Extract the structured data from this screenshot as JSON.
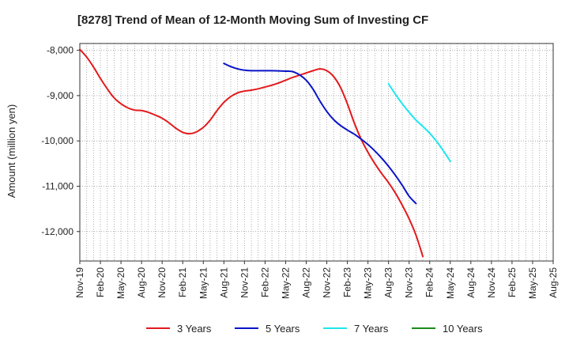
{
  "chart_data": {
    "type": "line",
    "title": "[8278]  Trend of Mean of 12-Month Moving Sum of Investing CF",
    "xlabel": "",
    "ylabel": "Amount (million yen)",
    "ylim": [
      -12650,
      -7850
    ],
    "yticks": [
      -8000,
      -9000,
      -10000,
      -11000,
      -12000
    ],
    "ytick_labels": [
      "-8,000",
      "-9,000",
      "-10,000",
      "-11,000",
      "-12,000"
    ],
    "x_categories": [
      "Nov-19",
      "Dec-19",
      "Jan-20",
      "Feb-20",
      "Mar-20",
      "Apr-20",
      "May-20",
      "Jun-20",
      "Jul-20",
      "Aug-20",
      "Sep-20",
      "Oct-20",
      "Nov-20",
      "Dec-20",
      "Jan-21",
      "Feb-21",
      "Mar-21",
      "Apr-21",
      "May-21",
      "Jun-21",
      "Jul-21",
      "Aug-21",
      "Sep-21",
      "Oct-21",
      "Nov-21",
      "Dec-21",
      "Jan-22",
      "Feb-22",
      "Mar-22",
      "Apr-22",
      "May-22",
      "Jun-22",
      "Jul-22",
      "Aug-22",
      "Sep-22",
      "Oct-22",
      "Nov-22",
      "Dec-22",
      "Jan-23",
      "Feb-23",
      "Mar-23",
      "Apr-23",
      "May-23",
      "Jun-23",
      "Jul-23",
      "Aug-23",
      "Sep-23",
      "Oct-23",
      "Nov-23",
      "Dec-23",
      "Jan-24",
      "Feb-24",
      "Mar-24",
      "Apr-24",
      "May-24",
      "Jun-24",
      "Jul-24",
      "Aug-24",
      "Sep-24",
      "Oct-24",
      "Nov-24",
      "Dec-24",
      "Jan-25",
      "Feb-25",
      "Mar-25",
      "Apr-25",
      "May-25",
      "Jun-25",
      "Jul-25",
      "Aug-25"
    ],
    "x_tick_labels": [
      "Nov-19",
      "Feb-20",
      "May-20",
      "Aug-20",
      "Nov-20",
      "Feb-21",
      "May-21",
      "Aug-21",
      "Nov-21",
      "Feb-22",
      "May-22",
      "Aug-22",
      "Nov-22",
      "Feb-23",
      "May-23",
      "Aug-23",
      "Nov-23",
      "Feb-24",
      "May-24",
      "Aug-24",
      "Nov-24",
      "Feb-25",
      "May-25",
      "Aug-25"
    ],
    "grid": true,
    "legend_position": "bottom",
    "series": [
      {
        "name": "3 Years",
        "color": "#e31a1c",
        "start_index": 0,
        "values": [
          -7980,
          -8150,
          -8370,
          -8620,
          -8850,
          -9050,
          -9180,
          -9270,
          -9320,
          -9330,
          -9370,
          -9430,
          -9500,
          -9600,
          -9720,
          -9810,
          -9840,
          -9800,
          -9700,
          -9540,
          -9330,
          -9150,
          -9020,
          -8940,
          -8900,
          -8880,
          -8850,
          -8810,
          -8770,
          -8720,
          -8660,
          -8600,
          -8550,
          -8500,
          -8450,
          -8410,
          -8450,
          -8580,
          -8820,
          -9180,
          -9600,
          -9960,
          -10250,
          -10500,
          -10720,
          -10920,
          -11150,
          -11420,
          -11720,
          -12080,
          -12550
        ]
      },
      {
        "name": "5 Years",
        "color": "#0a14c8",
        "start_index": 21,
        "values": [
          -8290,
          -8360,
          -8410,
          -8440,
          -8450,
          -8450,
          -8450,
          -8450,
          -8455,
          -8460,
          -8470,
          -8540,
          -8660,
          -8860,
          -9120,
          -9350,
          -9530,
          -9660,
          -9760,
          -9850,
          -9960,
          -10080,
          -10220,
          -10380,
          -10560,
          -10760,
          -10980,
          -11220,
          -11380
        ]
      },
      {
        "name": "7 Years",
        "color": "#1ee6ee",
        "start_index": 45,
        "values": [
          -8740,
          -8970,
          -9180,
          -9370,
          -9540,
          -9680,
          -9830,
          -10010,
          -10220,
          -10450
        ]
      },
      {
        "name": "10 Years",
        "color": "#1a8a1a",
        "start_index": 0,
        "values": []
      }
    ]
  }
}
